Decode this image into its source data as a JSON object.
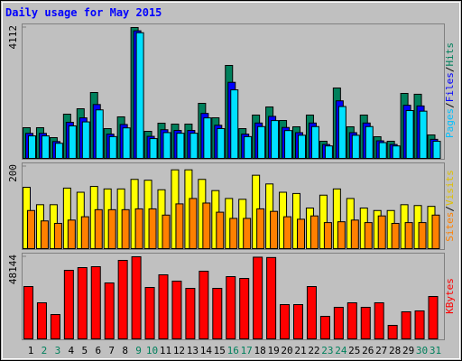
{
  "chart_data": [
    {
      "type": "bar",
      "title": "Daily usage for May 2015",
      "separator": "/",
      "ylim": [
        0,
        4112
      ],
      "yticks": [
        4112
      ],
      "series": [
        {
          "name": "Hits",
          "color": "#00805c",
          "values": [
            986,
            986,
            676,
            1408,
            1577,
            2084,
            957,
            1324,
            4112,
            873,
            1126,
            1098,
            1098,
            1746,
            1295,
            2929,
            957,
            1380,
            1633,
            1211,
            1014,
            1380,
            563,
            2225,
            1014,
            1380,
            704,
            563,
            2056,
            2030,
            760
          ]
        },
        {
          "name": "Files",
          "color": "#0000ff",
          "values": [
            809,
            809,
            554,
            1155,
            1293,
            1709,
            785,
            1086,
            4010,
            716,
            923,
            900,
            900,
            1432,
            1062,
            2402,
            785,
            1132,
            1339,
            993,
            831,
            1132,
            462,
            1825,
            831,
            1132,
            577,
            462,
            1686,
            1665,
            623
          ]
        },
        {
          "name": "Pages",
          "color": "#00e0ff",
          "values": [
            730,
            730,
            500,
            1042,
            1167,
            1542,
            708,
            980,
            3950,
            646,
            833,
            813,
            813,
            1292,
            958,
            2167,
            708,
            1021,
            1208,
            896,
            750,
            1021,
            417,
            1647,
            750,
            1021,
            521,
            417,
            1521,
            1502,
            562
          ]
        }
      ]
    },
    {
      "type": "bar",
      "separator": "/",
      "ylim": [
        0,
        200
      ],
      "yticks": [
        200
      ],
      "series": [
        {
          "name": "Visits",
          "color": "#ffff00",
          "values": [
            150,
            108,
            108,
            148,
            138,
            152,
            146,
            146,
            169,
            167,
            144,
            192,
            192,
            169,
            142,
            123,
            121,
            179,
            158,
            138,
            135,
            100,
            131,
            146,
            123,
            100,
            94,
            94,
            108,
            106,
            104
          ]
        },
        {
          "name": "Sites",
          "color": "#ff8000",
          "values": [
            94,
            69,
            63,
            71,
            79,
            96,
            96,
            96,
            98,
            98,
            83,
            110,
            123,
            112,
            90,
            75,
            75,
            98,
            92,
            79,
            73,
            81,
            65,
            67,
            71,
            65,
            81,
            63,
            65,
            65,
            83
          ]
        }
      ]
    },
    {
      "type": "bar",
      "ylim": [
        0,
        48144
      ],
      "yticks": [
        48144
      ],
      "series": [
        {
          "name": "KBytes",
          "color": "#ff0000",
          "values": [
            30875,
            21455,
            14652,
            40294,
            41864,
            42387,
            32968,
            46050,
            48144,
            30351,
            37678,
            34015,
            29828,
            39771,
            29828,
            36631,
            35584,
            47900,
            47700,
            20409,
            20409,
            30875,
            13606,
            18839,
            21455,
            18839,
            21455,
            8373,
            16222,
            16746,
            25119
          ]
        }
      ],
      "categories": [
        "1",
        "2",
        "3",
        "4",
        "5",
        "6",
        "7",
        "8",
        "9",
        "10",
        "11",
        "12",
        "13",
        "14",
        "15",
        "16",
        "17",
        "18",
        "19",
        "20",
        "21",
        "22",
        "23",
        "24",
        "25",
        "26",
        "27",
        "28",
        "29",
        "30",
        "31"
      ],
      "category_colors": [
        "#000000",
        "#00805c",
        "#00805c",
        "#000000",
        "#000000",
        "#000000",
        "#000000",
        "#000000",
        "#00805c",
        "#00805c",
        "#000000",
        "#000000",
        "#000000",
        "#000000",
        "#000000",
        "#00805c",
        "#00805c",
        "#000000",
        "#000000",
        "#000000",
        "#000000",
        "#000000",
        "#00805c",
        "#00805c",
        "#000000",
        "#000000",
        "#000000",
        "#000000",
        "#000000",
        "#00805c",
        "#00805c"
      ]
    }
  ]
}
